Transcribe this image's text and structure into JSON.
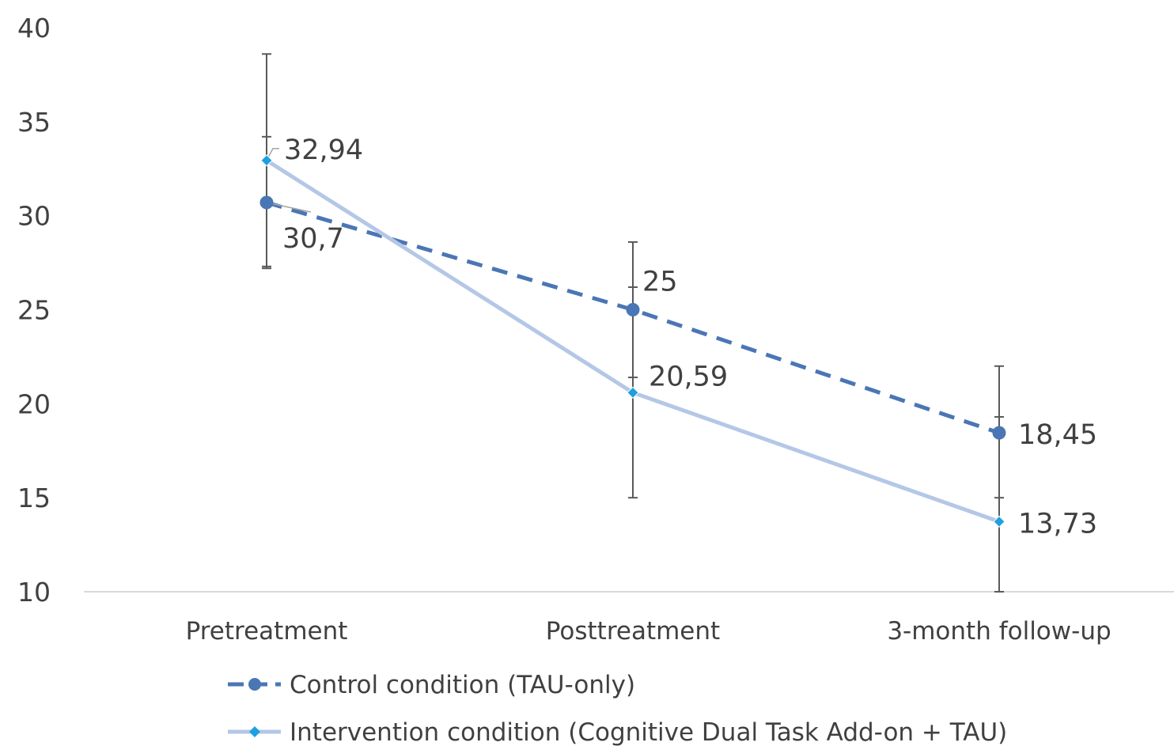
{
  "chart_data": {
    "type": "line",
    "title": "",
    "xlabel": "",
    "ylabel": "",
    "categories": [
      "Pretreatment",
      "Posttreatment",
      "3-month follow-up"
    ],
    "ylim": [
      10,
      40
    ],
    "yticks": [
      10,
      15,
      20,
      25,
      30,
      35,
      40
    ],
    "grid": false,
    "legend_position": "bottom",
    "series": [
      {
        "name": "Control condition (TAU-only)",
        "values": [
          30.7,
          25,
          18.45
        ],
        "labels": [
          "30,7",
          "25",
          "18,45"
        ],
        "error_low": [
          27.2,
          21.4,
          15.0
        ],
        "error_high": [
          38.6,
          28.6,
          22.0
        ],
        "color": "#4a76b5",
        "line_style": "dashed",
        "marker": "circle"
      },
      {
        "name": "Intervention condition (Cognitive Dual Task Add-on + TAU)",
        "values": [
          32.94,
          20.59,
          13.73
        ],
        "labels": [
          "32,94",
          "20,59",
          "13,73"
        ],
        "error_low": [
          27.3,
          15.0,
          10.0
        ],
        "error_high": [
          34.2,
          26.2,
          19.3
        ],
        "color": "#b4c7e7",
        "marker_color": "#1f9fe0",
        "line_style": "solid",
        "marker": "diamond"
      }
    ]
  }
}
